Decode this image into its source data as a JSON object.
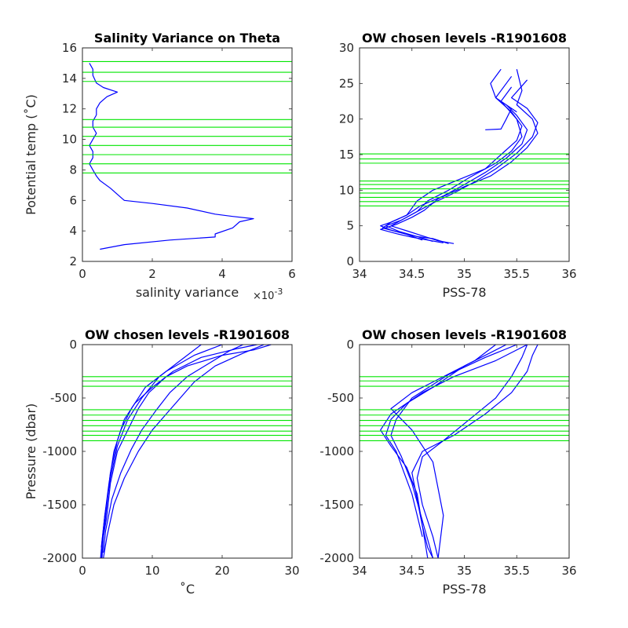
{
  "colors": {
    "profile": "#0000ff",
    "level": "#00e600",
    "axis": "#262626"
  },
  "chart_data": [
    {
      "type": "line",
      "title": "Salinity Variance on Theta",
      "xlabel": "salinity variance",
      "x_exponent_label": "×10",
      "x_exponent_power": "-3",
      "ylabel": "Potential temp (˚C)",
      "xlim": [
        0,
        0.006
      ],
      "ylim": [
        2,
        16
      ],
      "xticks": [
        0,
        0.002,
        0.004,
        0.006
      ],
      "xtick_labels": [
        "0",
        "2",
        "4",
        "6"
      ],
      "yticks": [
        2,
        4,
        6,
        8,
        10,
        12,
        14,
        16
      ],
      "ytick_labels": [
        "2",
        "4",
        "6",
        "8",
        "10",
        "12",
        "14",
        "16"
      ],
      "series": [
        {
          "x": [
            0.0005,
            0.0012,
            0.0025,
            0.0038,
            0.0038,
            0.0043,
            0.0045,
            0.0049,
            0.0043,
            0.0038,
            0.003,
            0.002,
            0.0012,
            0.0011,
            0.0008,
            0.0005,
            0.0004,
            0.0003,
            0.0002,
            0.0003,
            0.0003,
            0.0002,
            0.0003,
            0.0004,
            0.0003,
            0.0003,
            0.0004,
            0.0004,
            0.0005,
            0.0007,
            0.001,
            0.0006,
            0.0004,
            0.0003,
            0.0003,
            0.0002
          ],
          "y": [
            2.8,
            3.1,
            3.4,
            3.6,
            3.8,
            4.2,
            4.6,
            4.8,
            4.95,
            5.1,
            5.5,
            5.8,
            6.0,
            6.2,
            6.8,
            7.3,
            7.6,
            8.0,
            8.4,
            8.8,
            9.2,
            9.6,
            10.0,
            10.4,
            10.8,
            11.2,
            11.6,
            12.0,
            12.4,
            12.8,
            13.1,
            13.4,
            13.7,
            14.2,
            14.6,
            15.0
          ]
        }
      ],
      "hlines": [
        7.8,
        8.4,
        9.0,
        9.6,
        10.2,
        10.8,
        11.3,
        13.8,
        14.4,
        15.1
      ]
    },
    {
      "type": "line",
      "title": "OW chosen levels -R1901608",
      "xlabel": "PSS-78",
      "ylabel": "",
      "xlim": [
        34,
        36
      ],
      "ylim": [
        0,
        30
      ],
      "xticks": [
        34,
        34.5,
        35,
        35.5,
        36
      ],
      "xtick_labels": [
        "34",
        "34.5",
        "35",
        "35.5",
        "36"
      ],
      "yticks": [
        0,
        5,
        10,
        15,
        20,
        25,
        30
      ],
      "ytick_labels": [
        "0",
        "5",
        "10",
        "15",
        "20",
        "25",
        "30"
      ],
      "series": [
        {
          "x": [
            34.85,
            34.7,
            34.55,
            34.4,
            34.22,
            34.3,
            34.45,
            34.5,
            34.55,
            34.7,
            34.95,
            35.2,
            35.35,
            35.5,
            35.55,
            35.45,
            35.3,
            35.45
          ],
          "y": [
            2.5,
            3.2,
            3.5,
            4.0,
            4.7,
            5.5,
            6.5,
            7.5,
            8.5,
            10.0,
            11.5,
            13.0,
            15.0,
            17.0,
            19.0,
            21.0,
            23.0,
            26.0
          ]
        },
        {
          "x": [
            34.8,
            34.65,
            34.5,
            34.35,
            34.2,
            34.35,
            34.5,
            34.62,
            34.75,
            35.0,
            35.25,
            35.45,
            35.6,
            35.7,
            35.65,
            35.5,
            35.55,
            35.5
          ],
          "y": [
            2.6,
            3.0,
            3.4,
            3.9,
            4.5,
            5.2,
            6.2,
            7.2,
            8.8,
            10.5,
            12.0,
            14.0,
            16.0,
            18.0,
            20.0,
            22.0,
            24.0,
            27.0
          ]
        },
        {
          "x": [
            34.7,
            34.55,
            34.38,
            34.25,
            34.4,
            34.55,
            34.7,
            34.9,
            35.1,
            35.3,
            35.5,
            35.65,
            35.7,
            35.6,
            35.45,
            35.6
          ],
          "y": [
            2.8,
            3.5,
            4.2,
            5.0,
            5.8,
            7.0,
            8.2,
            9.6,
            11.2,
            13.0,
            15.2,
            17.5,
            19.5,
            21.5,
            23.0,
            25.5
          ]
        },
        {
          "x": [
            34.9,
            34.75,
            34.6,
            34.45,
            34.3,
            34.4,
            34.55,
            34.65,
            34.85,
            35.05,
            35.3,
            35.45,
            35.55,
            35.5,
            35.35,
            35.45
          ],
          "y": [
            2.5,
            2.9,
            3.6,
            4.3,
            5.0,
            5.8,
            7.0,
            8.5,
            10.0,
            11.8,
            13.8,
            15.5,
            17.5,
            20.0,
            22.5,
            24.5
          ]
        },
        {
          "x": [
            34.6,
            34.45,
            34.3,
            34.2,
            34.3,
            34.45,
            34.58,
            34.8,
            35.0,
            35.2,
            35.4,
            35.55,
            35.6,
            35.5,
            35.4
          ],
          "y": [
            3.0,
            3.8,
            4.4,
            5.0,
            5.5,
            6.5,
            7.8,
            9.2,
            10.8,
            12.5,
            14.5,
            16.5,
            18.5,
            20.5,
            22.0
          ]
        },
        {
          "x": [
            35.2,
            35.35,
            35.4,
            35.45
          ],
          "y": [
            18.5,
            18.6,
            20.0,
            21.5
          ]
        },
        {
          "x": [
            35.35,
            35.25,
            35.3,
            35.5
          ],
          "y": [
            27.0,
            25.0,
            23.0,
            21.0
          ]
        }
      ],
      "hlines": [
        7.8,
        8.4,
        9.0,
        9.6,
        10.2,
        10.8,
        11.3,
        13.8,
        14.4,
        15.1
      ]
    },
    {
      "type": "line",
      "title": "OW chosen levels -R1901608",
      "xlabel": "˚C",
      "ylabel": "Pressure (dbar)",
      "xlim": [
        0,
        30
      ],
      "ylim": [
        -2000,
        0
      ],
      "xticks": [
        0,
        10,
        20,
        30
      ],
      "xtick_labels": [
        "0",
        "10",
        "20",
        "30"
      ],
      "yticks": [
        -2000,
        -1500,
        -1000,
        -500,
        0
      ],
      "ytick_labels": [
        "-2000",
        "-1500",
        "-1000",
        "-500",
        "0"
      ],
      "series": [
        {
          "x": [
            27.0,
            24.5,
            20.0,
            15.0,
            12.0,
            9.5,
            8.0,
            6.5,
            5.0,
            4.0,
            3.5,
            3.0,
            2.8
          ],
          "y": [
            0,
            -50,
            -100,
            -200,
            -300,
            -450,
            -600,
            -800,
            -1000,
            -1300,
            -1600,
            -1800,
            -2000
          ]
        },
        {
          "x": [
            25.0,
            22.0,
            17.0,
            13.0,
            10.0,
            7.5,
            6.0,
            5.0,
            4.0,
            3.5,
            3.0,
            2.7
          ],
          "y": [
            0,
            -40,
            -120,
            -250,
            -400,
            -550,
            -700,
            -900,
            -1200,
            -1500,
            -1800,
            -2000
          ]
        },
        {
          "x": [
            20.0,
            16.0,
            12.0,
            9.0,
            7.0,
            5.5,
            4.5,
            3.8,
            3.2,
            2.8,
            2.6
          ],
          "y": [
            0,
            -100,
            -250,
            -400,
            -600,
            -800,
            -1000,
            -1300,
            -1600,
            -1850,
            -2000
          ]
        },
        {
          "x": [
            26.0,
            23.0,
            19.0,
            16.0,
            14.0,
            12.0,
            10.0,
            8.0,
            6.0,
            4.5,
            3.5,
            3.0
          ],
          "y": [
            0,
            -80,
            -200,
            -350,
            -500,
            -650,
            -800,
            -1000,
            -1250,
            -1500,
            -1800,
            -2000
          ]
        },
        {
          "x": [
            17.0,
            14.0,
            11.0,
            8.5,
            6.5,
            5.0,
            4.0,
            3.2,
            2.7
          ],
          "y": [
            0,
            -150,
            -300,
            -500,
            -700,
            -950,
            -1250,
            -1600,
            -1900
          ]
        },
        {
          "x": [
            23.0,
            21.0,
            18.0,
            15.0,
            12.5,
            10.5,
            8.5,
            7.0,
            5.5,
            4.2,
            3.3,
            3.0
          ],
          "y": [
            0,
            -60,
            -180,
            -300,
            -450,
            -620,
            -800,
            -980,
            -1200,
            -1450,
            -1750,
            -1950
          ]
        }
      ],
      "hlines": [
        -300,
        -340,
        -390,
        -610,
        -660,
        -710,
        -760,
        -810,
        -850,
        -900
      ]
    },
    {
      "type": "line",
      "title": "OW chosen levels -R1901608",
      "xlabel": "PSS-78",
      "ylabel": "",
      "xlim": [
        34,
        36
      ],
      "ylim": [
        -2000,
        0
      ],
      "xticks": [
        34,
        34.5,
        35,
        35.5,
        36
      ],
      "xtick_labels": [
        "34",
        "34.5",
        "35",
        "35.5",
        "36"
      ],
      "yticks": [
        -2000,
        -1500,
        -1000,
        -500,
        0
      ],
      "ytick_labels": [
        "-2000",
        "-1500",
        "-1000",
        "-500",
        "0"
      ],
      "series": [
        {
          "x": [
            35.7,
            35.65,
            35.6,
            35.45,
            35.2,
            34.9,
            34.6,
            34.5,
            34.55,
            34.6,
            34.65,
            34.7
          ],
          "y": [
            0,
            -100,
            -250,
            -450,
            -650,
            -850,
            -1000,
            -1200,
            -1450,
            -1700,
            -1900,
            -2000
          ]
        },
        {
          "x": [
            35.6,
            35.3,
            34.9,
            34.6,
            34.3,
            34.2,
            34.3,
            34.45,
            34.55,
            34.6,
            34.65
          ],
          "y": [
            0,
            -150,
            -300,
            -450,
            -650,
            -800,
            -950,
            -1150,
            -1400,
            -1700,
            -2000
          ]
        },
        {
          "x": [
            35.5,
            35.2,
            34.85,
            34.5,
            34.35,
            34.3,
            34.4,
            34.5,
            34.6,
            34.7
          ],
          "y": [
            0,
            -120,
            -280,
            -500,
            -700,
            -850,
            -1050,
            -1300,
            -1650,
            -2000
          ]
        },
        {
          "x": [
            35.6,
            35.55,
            35.45,
            35.3,
            35.05,
            34.8,
            34.6,
            34.55,
            34.6,
            34.7,
            34.75
          ],
          "y": [
            0,
            -120,
            -300,
            -500,
            -700,
            -900,
            -1050,
            -1250,
            -1500,
            -1800,
            -2000
          ]
        },
        {
          "x": [
            35.4,
            35.0,
            34.7,
            34.45,
            34.3,
            34.25,
            34.35,
            34.5,
            34.6
          ],
          "y": [
            0,
            -200,
            -400,
            -550,
            -700,
            -850,
            -1000,
            -1400,
            -1800
          ]
        },
        {
          "x": [
            35.3,
            35.1,
            34.9,
            34.7,
            34.5,
            34.3,
            34.5,
            34.7,
            34.8,
            34.75
          ],
          "y": [
            0,
            -150,
            -250,
            -350,
            -450,
            -600,
            -800,
            -1100,
            -1600,
            -2000
          ]
        }
      ],
      "hlines": [
        -300,
        -340,
        -390,
        -610,
        -660,
        -710,
        -760,
        -810,
        -850,
        -900
      ]
    }
  ]
}
